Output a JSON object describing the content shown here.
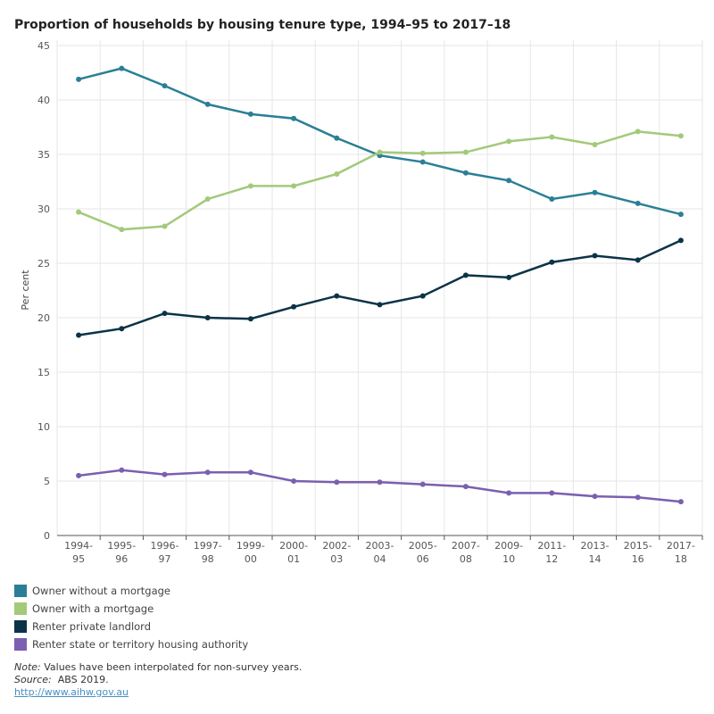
{
  "chart_data": {
    "type": "line",
    "title": "Proportion of households by housing tenure type, 1994–95 to 2017–18",
    "ylabel": "Per cent",
    "xlabel": "",
    "ylim": [
      0,
      45
    ],
    "yticks": [
      0,
      5,
      10,
      15,
      20,
      25,
      30,
      35,
      40,
      45
    ],
    "grid": true,
    "legend": "bottom-left",
    "categories": [
      "1994-95",
      "1995-96",
      "1996-97",
      "1997-98",
      "1999-00",
      "2000-01",
      "2002-03",
      "2003-04",
      "2005-06",
      "2007-08",
      "2009-10",
      "2011-12",
      "2013-14",
      "2015-16",
      "2017-18"
    ],
    "series": [
      {
        "name": "Owner without a mortgage",
        "color": "#2a7f96",
        "values": [
          41.9,
          42.9,
          41.3,
          39.6,
          38.7,
          38.3,
          36.5,
          34.9,
          34.3,
          33.3,
          32.6,
          30.9,
          31.5,
          30.5,
          29.5
        ]
      },
      {
        "name": "Owner with a mortgage",
        "color": "#a3c97a",
        "values": [
          29.7,
          28.1,
          28.4,
          30.9,
          32.1,
          32.1,
          33.2,
          35.2,
          35.1,
          35.2,
          36.2,
          36.6,
          35.9,
          37.1,
          36.7
        ]
      },
      {
        "name": "Renter private landlord",
        "color": "#0b3347",
        "values": [
          18.4,
          19.0,
          20.4,
          20.0,
          19.9,
          21.0,
          22.0,
          21.2,
          22.0,
          23.9,
          23.7,
          25.1,
          25.7,
          25.3,
          27.1
        ]
      },
      {
        "name": "Renter state or territory housing authority",
        "color": "#7b5fb0",
        "values": [
          5.5,
          6.0,
          5.6,
          5.8,
          5.8,
          5.0,
          4.9,
          4.9,
          4.7,
          4.5,
          3.9,
          3.9,
          3.6,
          3.5,
          3.1
        ]
      }
    ]
  },
  "notes": {
    "note_label": "Note:",
    "note_text": " Values have been interpolated for non-survey years.",
    "source_label": "Source:",
    "source_text": "  ABS 2019.",
    "link": "http://www.aihw.gov.au"
  }
}
